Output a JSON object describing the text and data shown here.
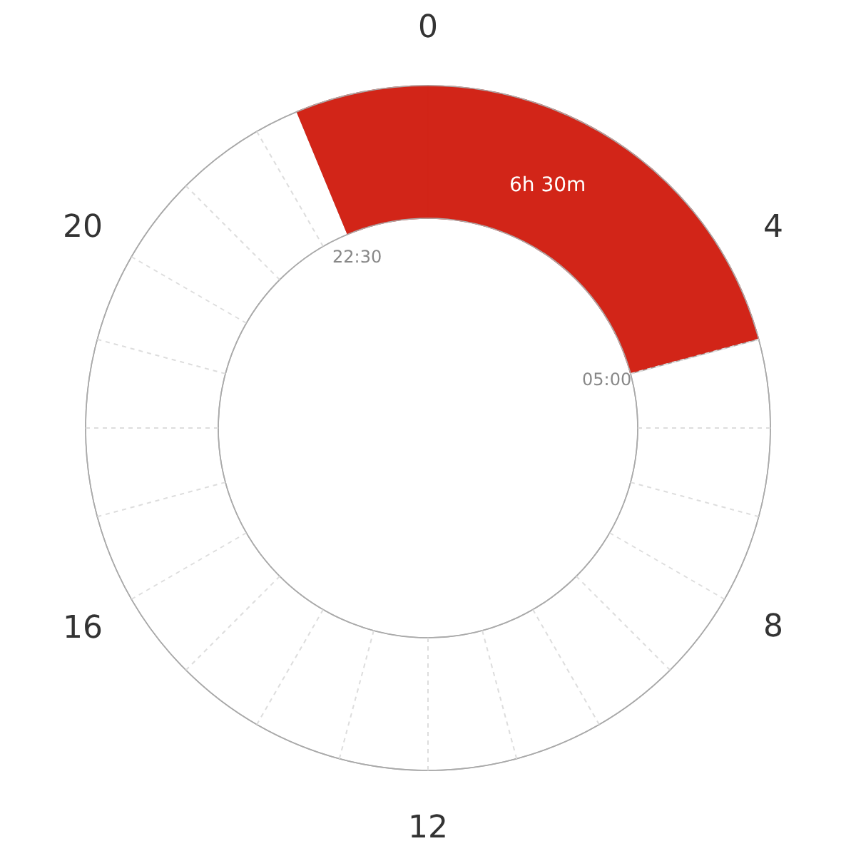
{
  "chart_data": {
    "type": "donut",
    "categories": [
      null,
      null,
      null
    ],
    "values": [
      20.833,
      72.917,
      6.25
    ],
    "colors": [
      "#d22518",
      "#ffffff",
      "#d22518"
    ],
    "grid": true,
    "annotations": [
      "6h 30m",
      "22:30",
      "05:00",
      "0",
      "4",
      "8",
      "12",
      "16",
      "20"
    ]
  }
}
